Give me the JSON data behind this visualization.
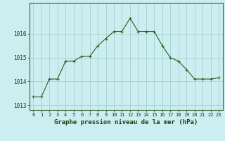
{
  "x": [
    0,
    1,
    2,
    3,
    4,
    5,
    6,
    7,
    8,
    9,
    10,
    11,
    12,
    13,
    14,
    15,
    16,
    17,
    18,
    19,
    20,
    21,
    22,
    23
  ],
  "y": [
    1013.35,
    1013.35,
    1014.1,
    1014.1,
    1014.85,
    1014.85,
    1015.05,
    1015.05,
    1015.5,
    1015.8,
    1016.1,
    1016.1,
    1016.65,
    1016.1,
    1016.1,
    1016.1,
    1015.5,
    1015.0,
    1014.85,
    1014.5,
    1014.1,
    1014.1,
    1014.1,
    1014.15
  ],
  "line_color": "#2d5a1b",
  "marker_color": "#2d5a1b",
  "bg_color": "#cceef0",
  "grid_color": "#99cccc",
  "title": "Graphe pression niveau de la mer (hPa)",
  "title_color": "#1a4010",
  "title_fontsize": 6.5,
  "tick_color": "#1a4010",
  "tick_fontsize": 5.0,
  "ylim": [
    1012.8,
    1017.3
  ],
  "yticks": [
    1013,
    1014,
    1015,
    1016
  ],
  "xlim": [
    -0.5,
    23.5
  ],
  "xticks": [
    0,
    1,
    2,
    3,
    4,
    5,
    6,
    7,
    8,
    9,
    10,
    11,
    12,
    13,
    14,
    15,
    16,
    17,
    18,
    19,
    20,
    21,
    22,
    23
  ]
}
